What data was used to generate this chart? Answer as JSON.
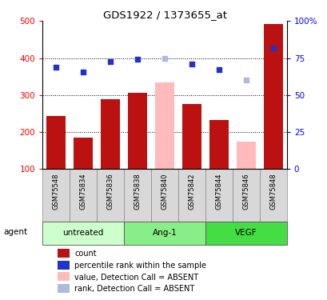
{
  "title": "GDS1922 / 1373655_at",
  "samples": [
    "GSM75548",
    "GSM75834",
    "GSM75836",
    "GSM75838",
    "GSM75840",
    "GSM75842",
    "GSM75844",
    "GSM75846",
    "GSM75848"
  ],
  "bar_values": [
    244,
    185,
    288,
    305,
    335,
    276,
    232,
    173,
    492
  ],
  "bar_absent": [
    false,
    false,
    false,
    false,
    true,
    false,
    false,
    true,
    false
  ],
  "rank_values": [
    375,
    363,
    390,
    397,
    398,
    383,
    368,
    340,
    428
  ],
  "rank_absent": [
    false,
    false,
    false,
    false,
    true,
    false,
    false,
    true,
    false
  ],
  "color_bar_present": "#bb1111",
  "color_bar_absent": "#ffbbbb",
  "color_rank_present": "#2233cc",
  "color_rank_absent": "#aabbdd",
  "groups": [
    {
      "label": "untreated",
      "start": 0,
      "end": 3
    },
    {
      "label": "Ang-1",
      "start": 3,
      "end": 6
    },
    {
      "label": "VEGF",
      "start": 6,
      "end": 9
    }
  ],
  "group_colors": [
    "#ccffcc",
    "#88ee88",
    "#44dd44"
  ],
  "ylim_left": [
    100,
    500
  ],
  "ylim_right": [
    0,
    100
  ],
  "yticks_left": [
    100,
    200,
    300,
    400,
    500
  ],
  "ytick_labels_left": [
    "100",
    "200",
    "300",
    "400",
    "500"
  ],
  "yticks_right": [
    0,
    25,
    50,
    75,
    100
  ],
  "ytick_labels_right": [
    "0",
    "25",
    "50",
    "75",
    "100%"
  ],
  "grid_values": [
    200,
    300,
    400
  ],
  "agent_label": "agent",
  "legend_items": [
    {
      "color": "#bb1111",
      "label": "count"
    },
    {
      "color": "#2233cc",
      "label": "percentile rank within the sample"
    },
    {
      "color": "#ffbbbb",
      "label": "value, Detection Call = ABSENT"
    },
    {
      "color": "#aabbdd",
      "label": "rank, Detection Call = ABSENT"
    }
  ]
}
